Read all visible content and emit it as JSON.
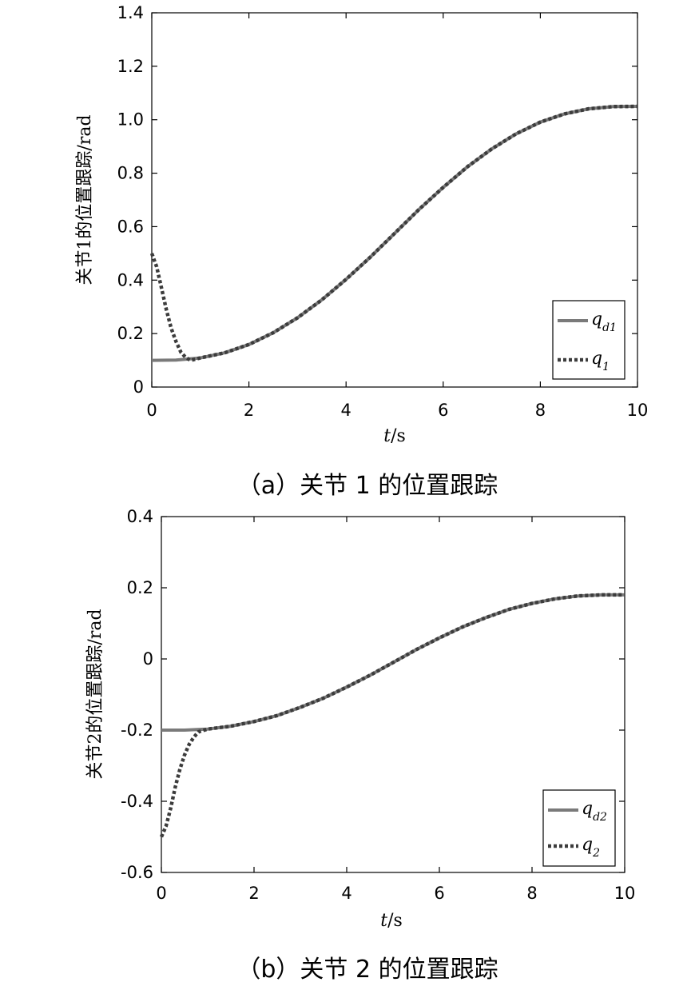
{
  "chart_data": [
    {
      "type": "line",
      "caption": "（a）关节 1 的位置跟踪",
      "xlabel_italic": "t",
      "xlabel_unit": "/s",
      "ylabel": "关节1的位置跟踪/rad",
      "xlim": [
        0,
        10
      ],
      "ylim": [
        0,
        1.4
      ],
      "xticks": [
        0,
        2,
        4,
        6,
        8,
        10
      ],
      "yticks": [
        0,
        0.2,
        0.4,
        0.6,
        0.8,
        1.0,
        1.2,
        1.4
      ],
      "ytick_labels": [
        "0",
        "0.2",
        "0.4",
        "0.6",
        "0.8",
        "1.0",
        "1.2",
        "1.4"
      ],
      "grid": false,
      "legend_position": "bottom-right",
      "series": [
        {
          "name": "q_d1",
          "legend_main": "q",
          "legend_sub": "d1",
          "style": "solid",
          "color": "#7a7a7a",
          "x": [
            0,
            0.5,
            1,
            1.5,
            2,
            2.5,
            3,
            3.5,
            4,
            4.5,
            5,
            5.5,
            6,
            6.5,
            7,
            7.5,
            8,
            8.5,
            9,
            9.5,
            10
          ],
          "y": [
            0.1,
            0.101,
            0.109,
            0.128,
            0.159,
            0.203,
            0.259,
            0.326,
            0.403,
            0.486,
            0.575,
            0.664,
            0.747,
            0.824,
            0.891,
            0.947,
            0.991,
            1.022,
            1.041,
            1.049,
            1.05
          ]
        },
        {
          "name": "q_1",
          "legend_main": "q",
          "legend_sub": "1",
          "style": "dotted",
          "color": "#3c3c3c",
          "x": [
            0,
            0.1,
            0.2,
            0.3,
            0.4,
            0.5,
            0.6,
            0.7,
            0.8,
            1,
            1.5,
            2,
            2.5,
            3,
            3.5,
            4,
            4.5,
            5,
            5.5,
            6,
            6.5,
            7,
            7.5,
            8,
            8.5,
            9,
            9.5,
            10
          ],
          "y": [
            0.5,
            0.45,
            0.37,
            0.29,
            0.22,
            0.17,
            0.13,
            0.11,
            0.1,
            0.109,
            0.128,
            0.159,
            0.203,
            0.259,
            0.326,
            0.403,
            0.486,
            0.575,
            0.664,
            0.747,
            0.824,
            0.891,
            0.947,
            0.991,
            1.022,
            1.041,
            1.049,
            1.05
          ]
        }
      ]
    },
    {
      "type": "line",
      "caption": "（b）关节 2 的位置跟踪",
      "xlabel_italic": "t",
      "xlabel_unit": "/s",
      "ylabel": "关节2的位置跟踪/rad",
      "xlim": [
        0,
        10
      ],
      "ylim": [
        -0.6,
        0.4
      ],
      "xticks": [
        0,
        2,
        4,
        6,
        8,
        10
      ],
      "yticks": [
        -0.6,
        -0.4,
        -0.2,
        0,
        0.2,
        0.4
      ],
      "ytick_labels": [
        "-0.6",
        "-0.4",
        "-0.2",
        "0",
        "0.2",
        "0.4"
      ],
      "grid": false,
      "legend_position": "bottom-right",
      "series": [
        {
          "name": "q_d2",
          "legend_main": "q",
          "legend_sub": "d2",
          "style": "solid",
          "color": "#7a7a7a",
          "x": [
            0,
            0.5,
            1,
            1.5,
            2,
            2.5,
            3,
            3.5,
            4,
            4.5,
            5,
            5.5,
            6,
            6.5,
            7,
            7.5,
            8,
            8.5,
            9,
            9.5,
            10
          ],
          "y": [
            -0.2,
            -0.2,
            -0.197,
            -0.189,
            -0.176,
            -0.159,
            -0.136,
            -0.11,
            -0.079,
            -0.046,
            -0.01,
            0.026,
            0.059,
            0.09,
            0.116,
            0.139,
            0.156,
            0.169,
            0.177,
            0.18,
            0.18
          ]
        },
        {
          "name": "q_2",
          "legend_main": "q",
          "legend_sub": "2",
          "style": "dotted",
          "color": "#3c3c3c",
          "x": [
            0,
            0.1,
            0.2,
            0.3,
            0.4,
            0.5,
            0.6,
            0.7,
            0.8,
            1,
            1.5,
            2,
            2.5,
            3,
            3.5,
            4,
            4.5,
            5,
            5.5,
            6,
            6.5,
            7,
            7.5,
            8,
            8.5,
            9,
            9.5,
            10
          ],
          "y": [
            -0.5,
            -0.47,
            -0.42,
            -0.36,
            -0.31,
            -0.27,
            -0.24,
            -0.22,
            -0.205,
            -0.197,
            -0.189,
            -0.176,
            -0.159,
            -0.136,
            -0.11,
            -0.079,
            -0.046,
            -0.01,
            0.026,
            0.059,
            0.09,
            0.116,
            0.139,
            0.156,
            0.169,
            0.177,
            0.18,
            0.18
          ]
        }
      ]
    }
  ]
}
